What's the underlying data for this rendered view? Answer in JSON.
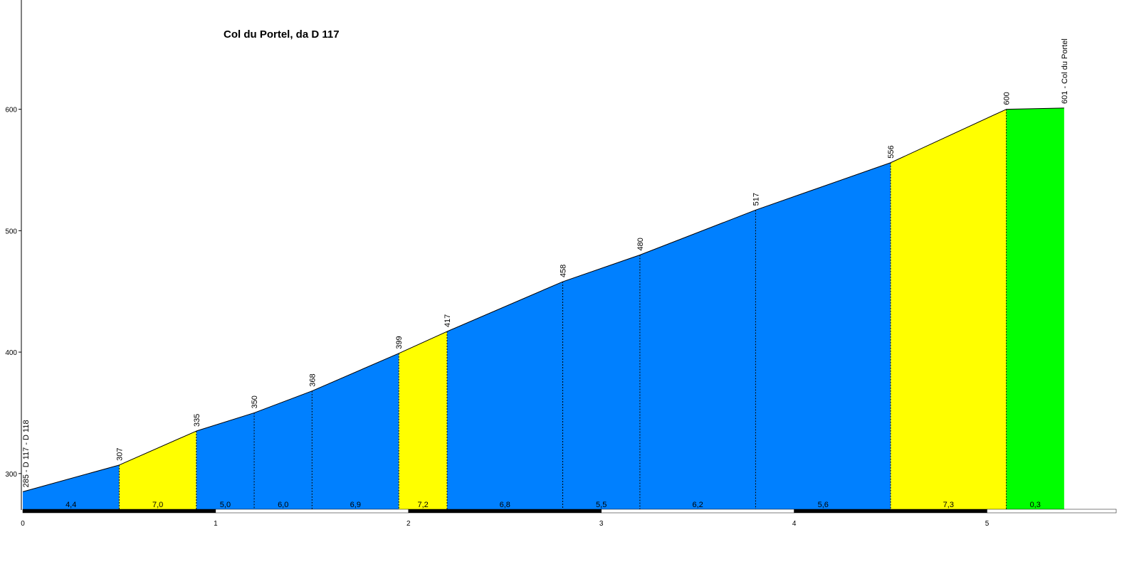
{
  "chart_data": {
    "type": "elevation-profile",
    "title": "Col du Portel, da D 117",
    "x": [
      0,
      0.5,
      0.9,
      1.2,
      1.5,
      1.95,
      2.2,
      2.8,
      3.2,
      3.8,
      4.5,
      5.1,
      5.4
    ],
    "values": [
      285,
      307,
      335,
      350,
      368,
      399,
      417,
      458,
      480,
      517,
      556,
      600,
      601
    ],
    "value_labels": [
      "285 - D 117 - D 118",
      "307",
      "335",
      "350",
      "368",
      "399",
      "417",
      "458",
      "480",
      "517",
      "556",
      "600",
      "601 - Col du Portel"
    ],
    "gradients": [
      4.4,
      7.0,
      5.0,
      6.0,
      6.9,
      7.2,
      6.8,
      5.5,
      6.2,
      5.6,
      7.3,
      0.3
    ],
    "gradient_labels": [
      "4,4",
      "7,0",
      "5,0",
      "6,0",
      "6,9",
      "7,2",
      "6,8",
      "5,5",
      "6,2",
      "5,6",
      "7,3",
      "0,3"
    ],
    "colors": [
      "#0080ff",
      "#ffff00",
      "#0080ff",
      "#0080ff",
      "#0080ff",
      "#ffff00",
      "#0080ff",
      "#0080ff",
      "#0080ff",
      "#0080ff",
      "#ffff00",
      "#00ff00"
    ],
    "xlim": [
      0,
      5.67
    ],
    "xticks": [
      0,
      1,
      2,
      3,
      4,
      5
    ],
    "ylim": [
      270,
      690
    ],
    "yticks": [
      300,
      400,
      500,
      600
    ]
  }
}
